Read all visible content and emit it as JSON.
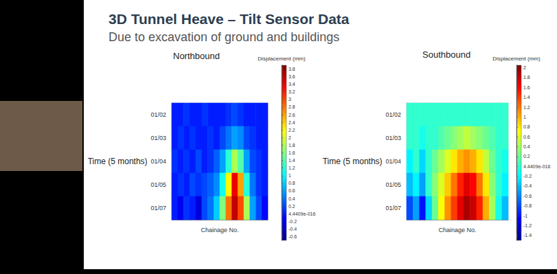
{
  "header": {
    "title": "3D Tunnel Heave – Tilt Sensor Data",
    "subtitle": "Due to excavation of ground and buildings"
  },
  "chart_data": [
    {
      "type": "heatmap",
      "title": "Northbound",
      "x_label": "Chainage No.",
      "y_label": "Time (5 months)",
      "value_label": "Displacement (mm)",
      "categories": [
        null,
        null,
        null,
        null,
        null,
        null,
        null,
        null,
        null,
        null,
        null,
        null,
        null,
        null,
        null,
        null
      ],
      "y_categories": [
        "01/02",
        "01/03",
        "01/04",
        "01/05",
        "01/07"
      ],
      "values": [
        [
          0,
          0,
          0.1,
          0,
          0,
          0.1,
          0,
          0,
          0,
          0.1,
          0.2,
          0.1,
          0,
          0,
          0,
          0
        ],
        [
          0,
          0.1,
          0,
          0.1,
          0,
          0,
          0.1,
          0,
          0.2,
          0.4,
          0.6,
          0.5,
          0.2,
          0.1,
          0,
          0
        ],
        [
          0.1,
          0,
          0.1,
          0,
          0.2,
          0,
          0.1,
          0.3,
          0.6,
          1.2,
          1.8,
          1.4,
          0.6,
          0.2,
          0.1,
          0
        ],
        [
          0,
          0.1,
          0,
          0.2,
          0.1,
          0.2,
          0.3,
          0.5,
          1.1,
          2.2,
          3.4,
          2.6,
          1.2,
          0.4,
          0.1,
          0
        ],
        [
          0,
          -0.2,
          0.1,
          0,
          -0.3,
          0.2,
          0.4,
          0.8,
          1.6,
          2.8,
          3.6,
          3.0,
          1.8,
          0.6,
          0.2,
          -0.1
        ]
      ],
      "colorbar_lim": [
        -0.7,
        3.9
      ],
      "colorbar_ticks": [
        -0.6,
        -0.4,
        -0.2,
        {
          "value": 0,
          "label": "4.4409e-016"
        },
        0.2,
        0.4,
        0.6,
        0.8,
        1,
        1.2,
        1.4,
        1.6,
        1.8,
        2,
        2.2,
        2.4,
        2.6,
        2.8,
        3,
        3.2,
        3.4,
        3.6,
        3.8
      ]
    },
    {
      "type": "heatmap",
      "title": "Southbound",
      "x_label": "Chainage No.",
      "y_label": "Time (5 months)",
      "value_label": "Displacement (mm)",
      "categories": [
        null,
        null,
        null,
        null,
        null,
        null,
        null,
        null,
        null,
        null,
        null,
        null,
        null,
        null,
        null,
        null
      ],
      "y_categories": [
        "01/02",
        "01/03",
        "01/04",
        "01/05",
        "01/07"
      ],
      "values": [
        [
          0,
          0,
          0,
          0,
          0,
          0,
          0,
          0,
          0,
          0,
          0,
          0,
          0,
          0,
          0,
          0
        ],
        [
          0,
          0,
          -0.1,
          0,
          0,
          0.1,
          0.2,
          0.3,
          0.4,
          0.5,
          0.4,
          0.3,
          0.2,
          0.1,
          0,
          0
        ],
        [
          -0.2,
          0,
          -0.3,
          0,
          0.2,
          0.4,
          0.6,
          0.8,
          1.0,
          1.1,
          1.0,
          0.8,
          0.5,
          0.2,
          0,
          -0.1
        ],
        [
          -0.4,
          -0.2,
          -0.5,
          0,
          0.3,
          0.6,
          0.9,
          1.2,
          1.5,
          1.7,
          1.6,
          1.2,
          0.8,
          0.3,
          0,
          -0.2
        ],
        [
          -0.8,
          -0.5,
          -1.0,
          -0.3,
          0.2,
          0.7,
          1.1,
          1.4,
          1.7,
          1.9,
          1.8,
          1.5,
          1.0,
          0.4,
          -0.1,
          -0.4
        ]
      ],
      "colorbar_lim": [
        -1.5,
        2.05
      ],
      "colorbar_ticks": [
        -1.4,
        -1.2,
        -1,
        -0.8,
        -0.6,
        -0.4,
        -0.2,
        {
          "value": 0,
          "label": "4.4409e-016"
        },
        0.2,
        0.4,
        0.6,
        0.8,
        1,
        1.2,
        1.4,
        1.6,
        1.8,
        2
      ]
    }
  ]
}
